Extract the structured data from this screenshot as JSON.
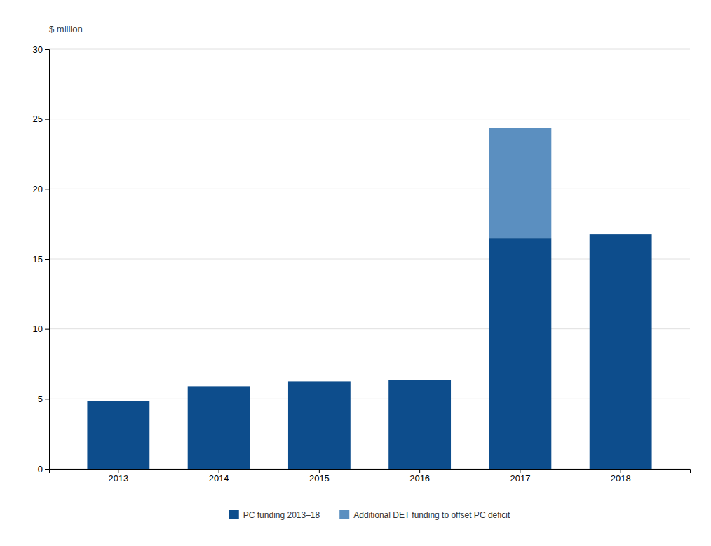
{
  "chart_data": {
    "type": "bar",
    "stacked": true,
    "categories": [
      "2013",
      "2014",
      "2015",
      "2016",
      "2017",
      "2018"
    ],
    "series": [
      {
        "name": "PC funding 2013–18",
        "color": "#0d4d8c",
        "values": [
          4.85,
          5.9,
          6.25,
          6.35,
          16.5,
          16.75
        ]
      },
      {
        "name": "Additional DET funding to offset PC deficit",
        "color": "#5b8fc0",
        "values": [
          0,
          0,
          0,
          0,
          7.85,
          0
        ]
      }
    ],
    "ylabel": "$ million",
    "ylim": [
      0,
      30
    ],
    "yticks": [
      0,
      5,
      10,
      15,
      20,
      25,
      30
    ],
    "grid": true,
    "legend": "bottom"
  }
}
